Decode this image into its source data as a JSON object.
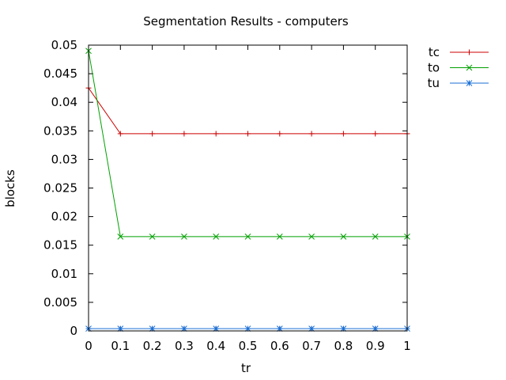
{
  "chart_data": {
    "type": "line",
    "title": "Segmentation Results - computers",
    "xlabel": "tr",
    "ylabel": "blocks",
    "xlim": [
      0,
      1
    ],
    "ylim": [
      0,
      0.05
    ],
    "xticks": [
      "0",
      "0.1",
      "0.2",
      "0.3",
      "0.4",
      "0.5",
      "0.6",
      "0.7",
      "0.8",
      "0.9",
      "1"
    ],
    "yticks": [
      "0",
      "0.005",
      "0.01",
      "0.015",
      "0.02",
      "0.025",
      "0.03",
      "0.035",
      "0.04",
      "0.045",
      "0.05"
    ],
    "x": [
      0,
      0.1,
      0.2,
      0.3,
      0.4,
      0.5,
      0.6,
      0.7,
      0.8,
      0.9,
      1.0
    ],
    "grid": false,
    "legend_position": "right-top-outside",
    "series": [
      {
        "name": "tc",
        "color": "#cc0000",
        "marker": "plus",
        "values": [
          0.0425,
          0.0345,
          0.0345,
          0.0345,
          0.0345,
          0.0345,
          0.0345,
          0.0345,
          0.0345,
          0.0345,
          0.0345
        ]
      },
      {
        "name": "to",
        "color": "#00a000",
        "marker": "cross",
        "values": [
          0.049,
          0.0165,
          0.0165,
          0.0165,
          0.0165,
          0.0165,
          0.0165,
          0.0165,
          0.0165,
          0.0165,
          0.0165
        ]
      },
      {
        "name": "tu",
        "color": "#1a6fd6",
        "marker": "star",
        "values": [
          0.0004,
          0.0004,
          0.0004,
          0.0004,
          0.0004,
          0.0004,
          0.0004,
          0.0004,
          0.0004,
          0.0004,
          0.0004
        ]
      }
    ]
  }
}
